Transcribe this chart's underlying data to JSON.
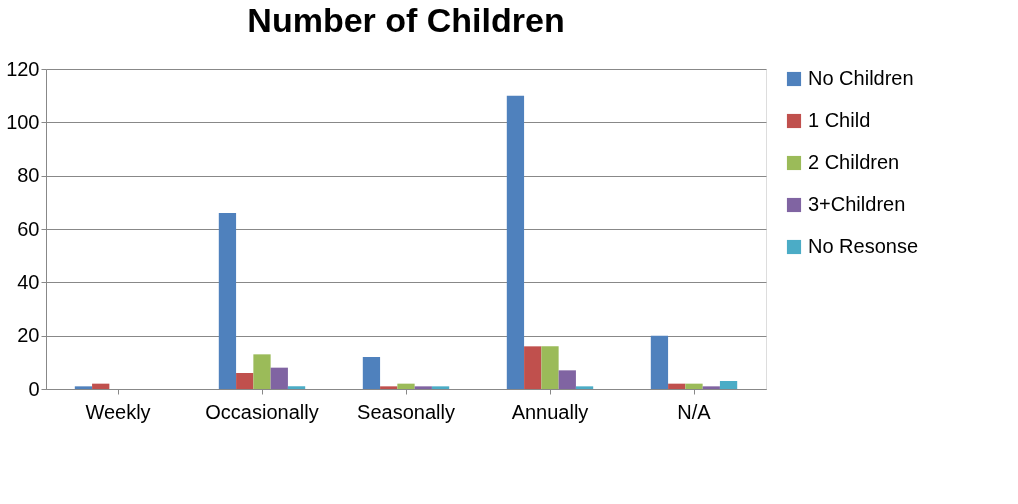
{
  "chart_data": {
    "type": "bar",
    "title": "Number of Children",
    "categories": [
      "Weekly",
      "Occasionally",
      "Seasonally",
      "Annually",
      "N/A"
    ],
    "series": [
      {
        "name": "No Children",
        "color": "#4f81bd",
        "values": [
          1,
          66,
          12,
          110,
          20
        ]
      },
      {
        "name": " 1 Child",
        "color": "#c0504d",
        "values": [
          2,
          6,
          1,
          16,
          2
        ]
      },
      {
        "name": "2 Children",
        "color": "#9bbb59",
        "values": [
          0,
          13,
          2,
          16,
          2
        ]
      },
      {
        "name": "3+Children",
        "color": "#8064a2",
        "values": [
          0,
          8,
          1,
          7,
          1
        ]
      },
      {
        "name": "No Resonse",
        "color": "#4bacc6",
        "values": [
          0,
          1,
          1,
          1,
          3
        ]
      }
    ],
    "ylim": [
      0,
      120
    ],
    "yticks": [
      0,
      20,
      40,
      60,
      80,
      100,
      120
    ],
    "grid": "y",
    "legend": "right"
  }
}
